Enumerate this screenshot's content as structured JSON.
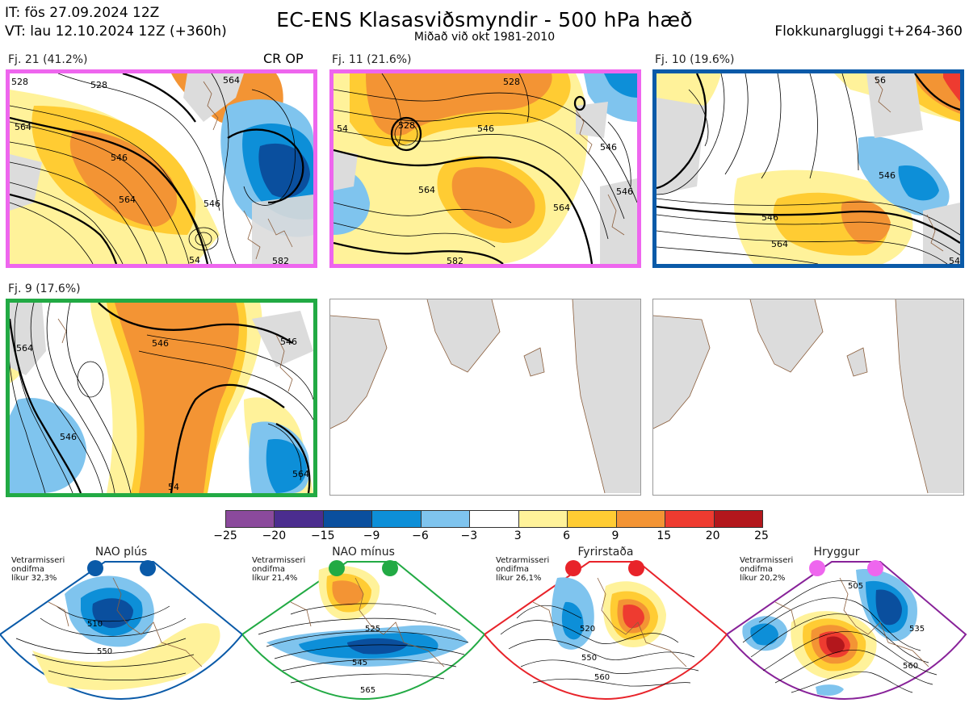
{
  "header": {
    "it": "IT: fös 27.09.2024 12Z",
    "vt": "VT: lau 12.10.2024 12Z  (+360h)",
    "title": "EC-ENS Klasasviðsmyndir - 500 hPa hæð",
    "subtitle": "Miðað við okt 1981-2010",
    "window": "Flokkunargluggi t+264-360"
  },
  "colors": {
    "magenta": "#ee66ee",
    "blue": "#0a5aa8",
    "green": "#22aa44",
    "red": "#e8232a",
    "purple": "#882299",
    "land": "#dcdcdc",
    "coast": "#8b5e3c"
  },
  "clusters": [
    {
      "label": "Fj. 21 (41.2%)",
      "tag": "CR OP",
      "border": "magenta",
      "labels": [
        "564",
        "546",
        "546",
        "564",
        "54",
        "528",
        "564",
        "582",
        "528"
      ]
    },
    {
      "label": "Fj. 11 (21.6%)",
      "tag": "",
      "border": "magenta",
      "labels": [
        "546",
        "528",
        "564",
        "564",
        "528",
        "546",
        "582",
        "54",
        "546"
      ]
    },
    {
      "label": "Fj. 10 (19.6%)",
      "tag": "",
      "border": "blue",
      "labels": [
        "546",
        "546",
        "564",
        "54",
        "56"
      ]
    },
    {
      "label": "Fj. 9 (17.6%)",
      "tag": "",
      "border": "green",
      "labels": [
        "546",
        "546",
        "546",
        "564",
        "564",
        "54"
      ]
    }
  ],
  "colorbar": {
    "ticks": [
      "−25",
      "−20",
      "−15",
      "−9",
      "−6",
      "−3",
      "3",
      "6",
      "9",
      "15",
      "20",
      "25"
    ],
    "colors": [
      "#8b4a9c",
      "#4b2d8f",
      "#0a4f9e",
      "#0d8fd8",
      "#7fc4ee",
      "#ffffff",
      "#fff29a",
      "#ffcc33",
      "#f39434",
      "#ee3b30",
      "#b3171c"
    ]
  },
  "regimes": [
    {
      "name": "NAO plús",
      "desc": [
        "Vetrarmisseri",
        "ondifma",
        "líkur 32,3%"
      ],
      "color": "blue",
      "contours": [
        "510",
        "550"
      ]
    },
    {
      "name": "NAO mínus",
      "desc": [
        "Vetrarmisseri",
        "ondifma",
        "líkur 21,4%"
      ],
      "color": "green",
      "contours": [
        "525",
        "545",
        "565"
      ]
    },
    {
      "name": "Fyrirstaða",
      "desc": [
        "Vetrarmisseri",
        "ondifma",
        "líkur 26,1%"
      ],
      "color": "red",
      "contours": [
        "520",
        "550",
        "560"
      ]
    },
    {
      "name": "Hryggur",
      "desc": [
        "Vetrarmisseri",
        "ondifma",
        "líkur 20,2%"
      ],
      "color": "purple",
      "contours": [
        "505",
        "535",
        "560"
      ]
    }
  ]
}
